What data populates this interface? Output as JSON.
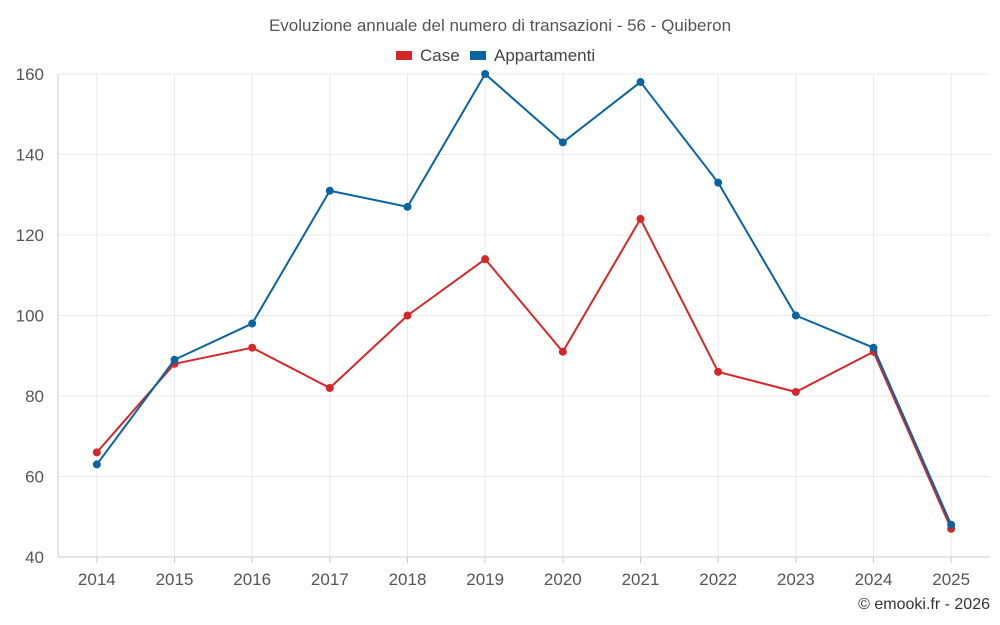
{
  "chart_data": {
    "type": "line",
    "title": "Evoluzione annuale del numero di transazioni - 56 - Quiberon",
    "categories": [
      "2014",
      "2015",
      "2016",
      "2017",
      "2018",
      "2019",
      "2020",
      "2021",
      "2022",
      "2023",
      "2024",
      "2025"
    ],
    "series": [
      {
        "name": "Case",
        "color": "#d62728",
        "values": [
          66,
          88,
          92,
          82,
          100,
          114,
          91,
          124,
          86,
          81,
          91,
          47
        ]
      },
      {
        "name": "Appartamenti",
        "color": "#0a64a0",
        "values": [
          63,
          89,
          98,
          131,
          127,
          160,
          143,
          158,
          133,
          100,
          92,
          48
        ]
      }
    ],
    "ylim": [
      40,
      160
    ],
    "yticks": [
      40,
      60,
      80,
      100,
      120,
      140,
      160
    ],
    "xlabel": "",
    "ylabel": "",
    "grid": true,
    "legend_position": "top-center"
  },
  "credit": "© emooki.fr - 2026"
}
